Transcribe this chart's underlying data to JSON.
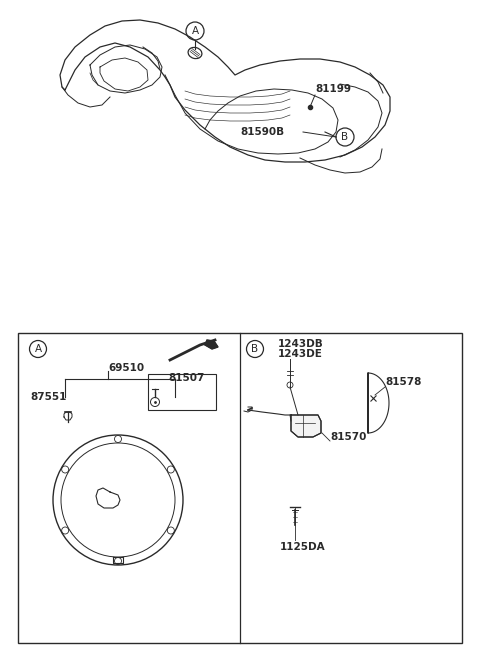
{
  "bg_color": "#ffffff",
  "lc": "#2a2a2a",
  "fig_width": 4.8,
  "fig_height": 6.55,
  "dpi": 100,
  "upper": {
    "callout_A_label": "A",
    "callout_B_label": "B",
    "part_81199": "81199",
    "part_81590B": "81590B"
  },
  "lower_left": {
    "label": "A",
    "part_69510": "69510",
    "part_87551": "87551",
    "part_81507": "81507"
  },
  "lower_right": {
    "label": "B",
    "part_1243DB": "1243DB",
    "part_1243DE": "1243DE",
    "part_81578": "81578",
    "part_81570": "81570",
    "part_1125DA": "1125DA"
  }
}
